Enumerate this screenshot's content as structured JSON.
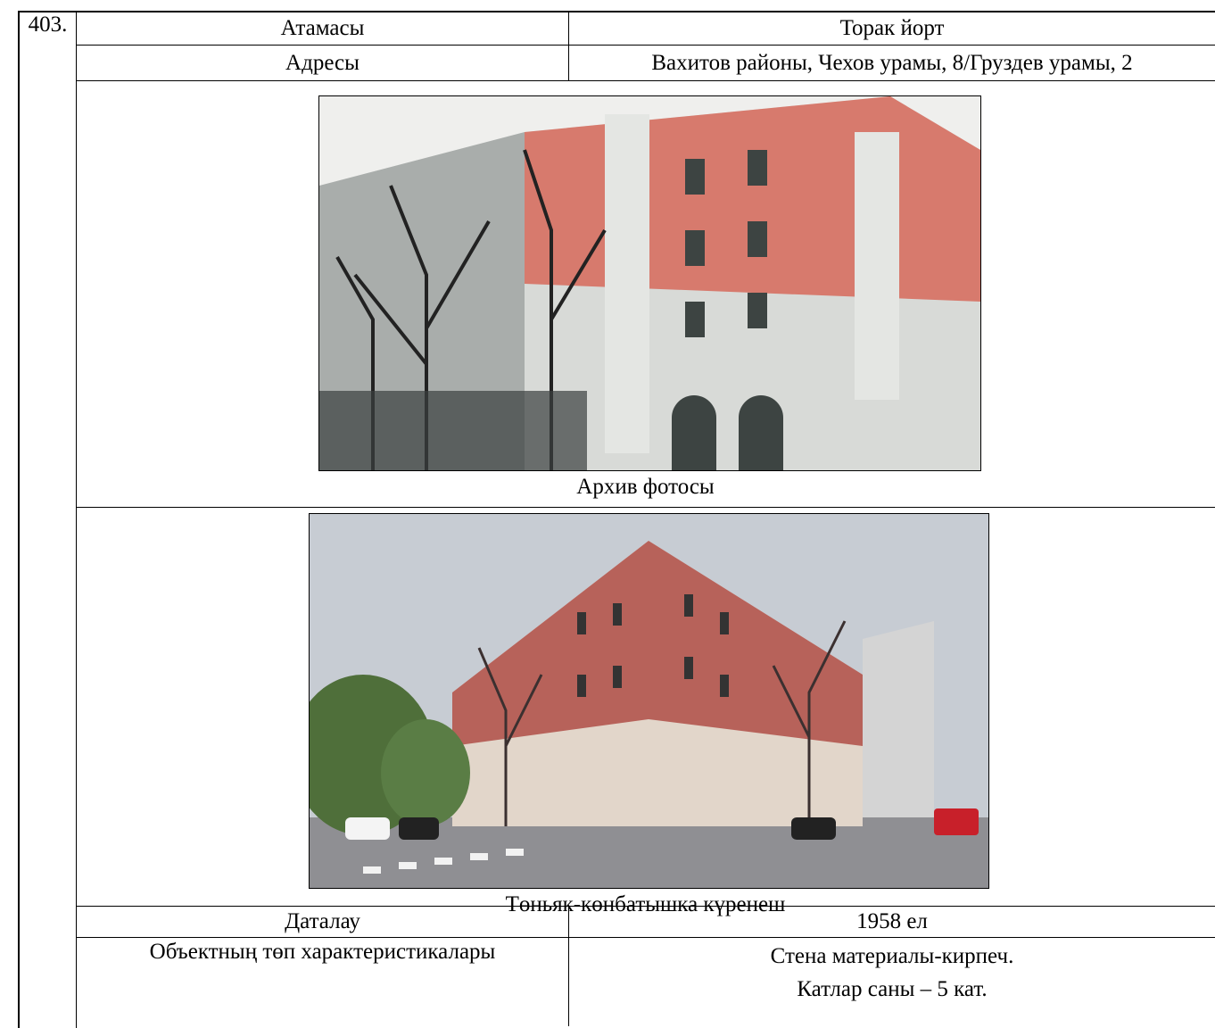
{
  "entry": {
    "number": "403.",
    "rows": [
      {
        "label": "Атамасы",
        "value": "Торак йорт"
      },
      {
        "label": "Адресы",
        "value": "Вахитов районы, Чехов урамы, 8/Груздев урамы, 2"
      }
    ],
    "photos": [
      {
        "caption": "Архив фотосы"
      },
      {
        "caption": "Төньяк-көнбатышка күренеш"
      }
    ],
    "details": [
      {
        "label": "Даталау",
        "value_lines": [
          "1958 ел"
        ]
      },
      {
        "label": "Объектның төп характеристикалары",
        "value_lines": [
          "Стена материалы-кирпеч.",
          "Катлар саны – 5 кат."
        ]
      }
    ]
  }
}
